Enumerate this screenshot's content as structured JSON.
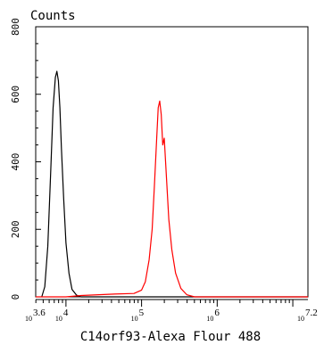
{
  "chart_data": {
    "type": "line",
    "ylabel": "Counts",
    "xlabel": "C14orf93-Alexa Flour 488",
    "x_scale": "log10",
    "xlim": [
      3.6,
      7.2
    ],
    "ylim": [
      0,
      800
    ],
    "y_ticks": [
      0,
      200,
      400,
      600,
      800
    ],
    "x_tick_labels": [
      {
        "base": "10",
        "exp": "3.6",
        "value": 3.6
      },
      {
        "base": "10",
        "exp": "4",
        "value": 4
      },
      {
        "base": "10",
        "exp": "5",
        "value": 5
      },
      {
        "base": "10",
        "exp": "6",
        "value": 6
      },
      {
        "base": "10",
        "exp": "7.2",
        "value": 7.2
      }
    ],
    "series": [
      {
        "color": "#000000",
        "x": [
          3.68,
          3.72,
          3.76,
          3.8,
          3.83,
          3.86,
          3.88,
          3.9,
          3.92,
          3.94,
          3.97,
          4.0,
          4.04,
          4.08,
          4.14,
          4.2,
          4.3,
          4.5,
          5.0,
          5.5,
          6.0,
          7.2
        ],
        "y": [
          0,
          30,
          150,
          380,
          560,
          650,
          668,
          640,
          560,
          440,
          290,
          160,
          70,
          22,
          5,
          0,
          0,
          0,
          0,
          0,
          0,
          0
        ]
      },
      {
        "color": "#ff0000",
        "x": [
          3.6,
          4.0,
          4.2,
          4.6,
          4.9,
          5.0,
          5.05,
          5.1,
          5.14,
          5.17,
          5.2,
          5.22,
          5.24,
          5.26,
          5.28,
          5.3,
          5.33,
          5.36,
          5.4,
          5.45,
          5.52,
          5.6,
          5.7,
          5.9,
          6.5,
          7.2
        ],
        "y": [
          0,
          0,
          4,
          8,
          10,
          20,
          45,
          110,
          200,
          330,
          470,
          560,
          580,
          540,
          450,
          470,
          350,
          230,
          140,
          70,
          25,
          6,
          0,
          0,
          0,
          0
        ]
      }
    ]
  }
}
